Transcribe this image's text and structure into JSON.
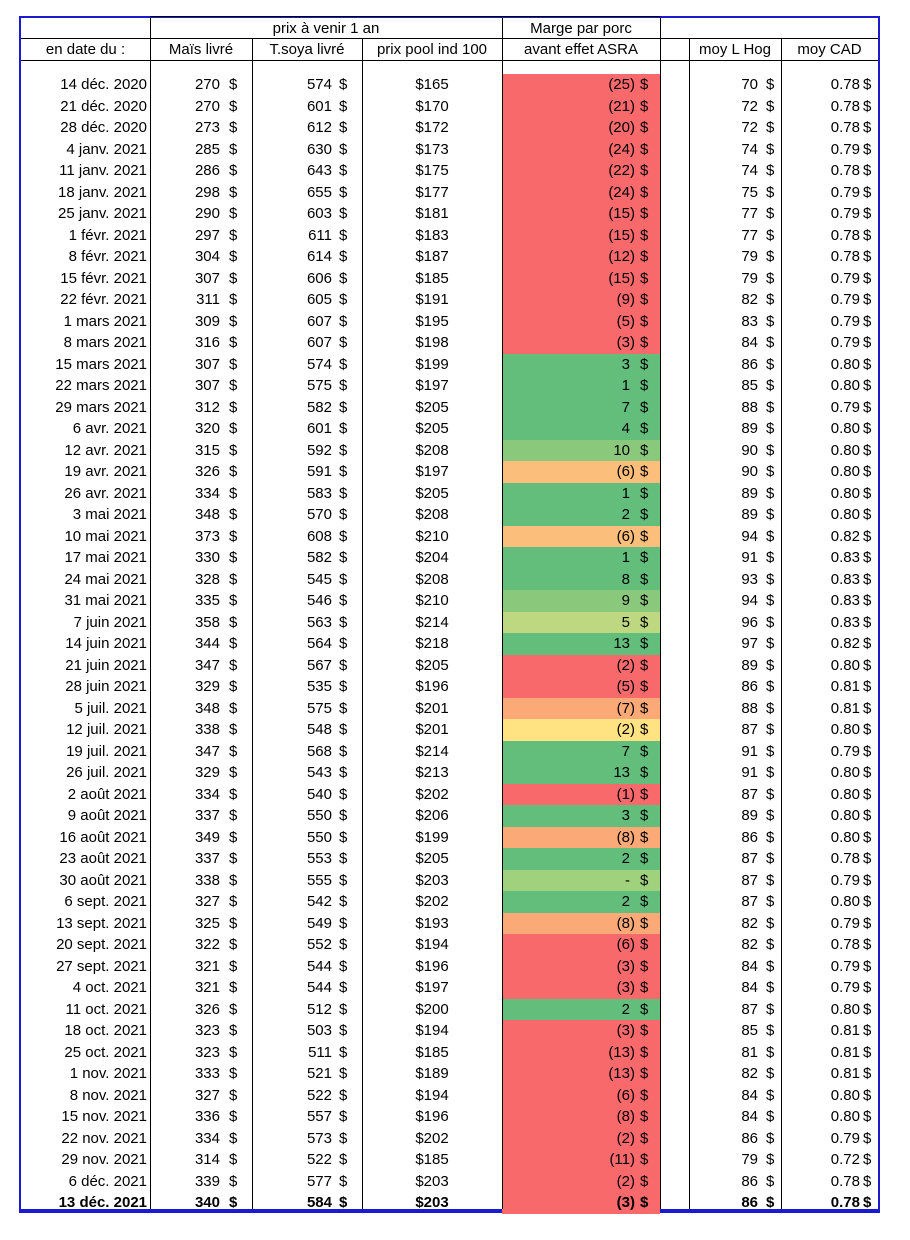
{
  "header": {
    "group_title": "prix à venir 1 an",
    "marge_line1": "Marge par porc",
    "marge_line2": "avant effet ASRA",
    "col_date": "en date du :",
    "col_mais": "Maïs livré",
    "col_soya": "T.soya livré",
    "col_pool": "prix pool ind 100",
    "col_hog": "moy L Hog",
    "col_cad": "moy CAD"
  },
  "currency": "$",
  "colors": {
    "R": "#F8696B",
    "G": "#63BE7B",
    "LG": "#8AC97B",
    "YG": "#BDD881",
    "LG2": "#A0D27E",
    "O": "#FBBE7B",
    "O2": "#FBA977",
    "Y": "#FFE383"
  },
  "rows": [
    [
      "14 déc. 2020",
      "270",
      "574",
      "$165",
      "(25)",
      "R",
      "70",
      "0.78"
    ],
    [
      "21 déc. 2020",
      "270",
      "601",
      "$170",
      "(21)",
      "R",
      "72",
      "0.78"
    ],
    [
      "28 déc. 2020",
      "273",
      "612",
      "$172",
      "(20)",
      "R",
      "72",
      "0.78"
    ],
    [
      "4 janv. 2021",
      "285",
      "630",
      "$173",
      "(24)",
      "R",
      "74",
      "0.79"
    ],
    [
      "11 janv. 2021",
      "286",
      "643",
      "$175",
      "(22)",
      "R",
      "74",
      "0.78"
    ],
    [
      "18 janv. 2021",
      "298",
      "655",
      "$177",
      "(24)",
      "R",
      "75",
      "0.79"
    ],
    [
      "25 janv. 2021",
      "290",
      "603",
      "$181",
      "(15)",
      "R",
      "77",
      "0.79"
    ],
    [
      "1 févr. 2021",
      "297",
      "611",
      "$183",
      "(15)",
      "R",
      "77",
      "0.78"
    ],
    [
      "8 févr. 2021",
      "304",
      "614",
      "$187",
      "(12)",
      "R",
      "79",
      "0.78"
    ],
    [
      "15 févr. 2021",
      "307",
      "606",
      "$185",
      "(15)",
      "R",
      "79",
      "0.79"
    ],
    [
      "22 févr. 2021",
      "311",
      "605",
      "$191",
      "(9)",
      "R",
      "82",
      "0.79"
    ],
    [
      "1 mars 2021",
      "309",
      "607",
      "$195",
      "(5)",
      "R",
      "83",
      "0.79"
    ],
    [
      "8 mars 2021",
      "316",
      "607",
      "$198",
      "(3)",
      "R",
      "84",
      "0.79"
    ],
    [
      "15 mars 2021",
      "307",
      "574",
      "$199",
      "3",
      "G",
      "86",
      "0.80"
    ],
    [
      "22 mars 2021",
      "307",
      "575",
      "$197",
      "1",
      "G",
      "85",
      "0.80"
    ],
    [
      "29 mars 2021",
      "312",
      "582",
      "$205",
      "7",
      "G",
      "88",
      "0.79"
    ],
    [
      "6 avr. 2021",
      "320",
      "601",
      "$205",
      "4",
      "G",
      "89",
      "0.80"
    ],
    [
      "12 avr. 2021",
      "315",
      "592",
      "$208",
      "10",
      "LG",
      "90",
      "0.80"
    ],
    [
      "19 avr. 2021",
      "326",
      "591",
      "$197",
      "(6)",
      "O",
      "90",
      "0.80"
    ],
    [
      "26 avr. 2021",
      "334",
      "583",
      "$205",
      "1",
      "G",
      "89",
      "0.80"
    ],
    [
      "3 mai 2021",
      "348",
      "570",
      "$208",
      "2",
      "G",
      "89",
      "0.80"
    ],
    [
      "10 mai 2021",
      "373",
      "608",
      "$210",
      "(6)",
      "O",
      "94",
      "0.82"
    ],
    [
      "17 mai 2021",
      "330",
      "582",
      "$204",
      "1",
      "G",
      "91",
      "0.83"
    ],
    [
      "24 mai 2021",
      "328",
      "545",
      "$208",
      "8",
      "G",
      "93",
      "0.83"
    ],
    [
      "31 mai 2021",
      "335",
      "546",
      "$210",
      "9",
      "LG",
      "94",
      "0.83"
    ],
    [
      "7 juin 2021",
      "358",
      "563",
      "$214",
      "5",
      "YG",
      "96",
      "0.83"
    ],
    [
      "14 juin 2021",
      "344",
      "564",
      "$218",
      "13",
      "G",
      "97",
      "0.82"
    ],
    [
      "21 juin 2021",
      "347",
      "567",
      "$205",
      "(2)",
      "R",
      "89",
      "0.80"
    ],
    [
      "28 juin 2021",
      "329",
      "535",
      "$196",
      "(5)",
      "R",
      "86",
      "0.81"
    ],
    [
      "5 juil. 2021",
      "348",
      "575",
      "$201",
      "(7)",
      "O2",
      "88",
      "0.81"
    ],
    [
      "12 juil. 2021",
      "338",
      "548",
      "$201",
      "(2)",
      "Y",
      "87",
      "0.80"
    ],
    [
      "19 juil. 2021",
      "347",
      "568",
      "$214",
      "7",
      "G",
      "91",
      "0.79"
    ],
    [
      "26 juil. 2021",
      "329",
      "543",
      "$213",
      "13",
      "G",
      "91",
      "0.80"
    ],
    [
      "2 août 2021",
      "334",
      "540",
      "$202",
      "(1)",
      "R",
      "87",
      "0.80"
    ],
    [
      "9 août 2021",
      "337",
      "550",
      "$206",
      "3",
      "G",
      "89",
      "0.80"
    ],
    [
      "16 août 2021",
      "349",
      "550",
      "$199",
      "(8)",
      "O2",
      "86",
      "0.80"
    ],
    [
      "23 août 2021",
      "337",
      "553",
      "$205",
      "2",
      "G",
      "87",
      "0.78"
    ],
    [
      "30 août 2021",
      "338",
      "555",
      "$203",
      "-",
      "LG2",
      "87",
      "0.79"
    ],
    [
      "6 sept. 2021",
      "327",
      "542",
      "$202",
      "2",
      "G",
      "87",
      "0.80"
    ],
    [
      "13 sept. 2021",
      "325",
      "549",
      "$193",
      "(8)",
      "O2",
      "82",
      "0.79"
    ],
    [
      "20 sept. 2021",
      "322",
      "552",
      "$194",
      "(6)",
      "R",
      "82",
      "0.78"
    ],
    [
      "27 sept. 2021",
      "321",
      "544",
      "$196",
      "(3)",
      "R",
      "84",
      "0.79"
    ],
    [
      "4 oct. 2021",
      "321",
      "544",
      "$197",
      "(3)",
      "R",
      "84",
      "0.79"
    ],
    [
      "11 oct. 2021",
      "326",
      "512",
      "$200",
      "2",
      "G",
      "87",
      "0.80"
    ],
    [
      "18 oct. 2021",
      "323",
      "503",
      "$194",
      "(3)",
      "R",
      "85",
      "0.81"
    ],
    [
      "25 oct. 2021",
      "323",
      "511",
      "$185",
      "(13)",
      "R",
      "81",
      "0.81"
    ],
    [
      "1 nov. 2021",
      "333",
      "521",
      "$189",
      "(13)",
      "R",
      "82",
      "0.81"
    ],
    [
      "8 nov. 2021",
      "327",
      "522",
      "$194",
      "(6)",
      "R",
      "84",
      "0.80"
    ],
    [
      "15 nov. 2021",
      "336",
      "557",
      "$196",
      "(8)",
      "R",
      "84",
      "0.80"
    ],
    [
      "22 nov. 2021",
      "334",
      "573",
      "$202",
      "(2)",
      "R",
      "86",
      "0.79"
    ],
    [
      "29 nov. 2021",
      "314",
      "522",
      "$185",
      "(11)",
      "R",
      "79",
      "0.72"
    ],
    [
      "6 déc. 2021",
      "339",
      "577",
      "$203",
      "(2)",
      "R",
      "86",
      "0.78"
    ],
    [
      "13 déc. 2021",
      "340",
      "584",
      "$203",
      "(3)",
      "R",
      "86",
      "0.78"
    ]
  ]
}
